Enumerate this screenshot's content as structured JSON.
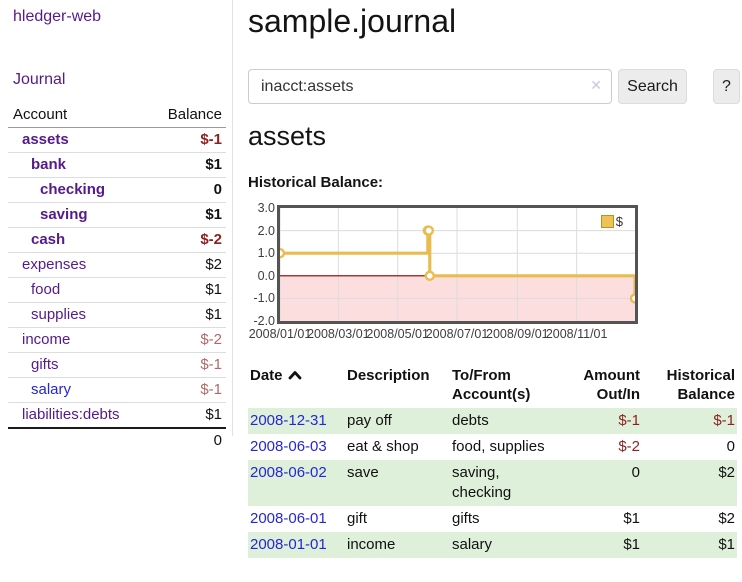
{
  "colors": {
    "accent_purple": "#551a8b",
    "link_blue": "#2626d4",
    "negative_strong": "#8e1f1f",
    "negative_soft": "#b26868",
    "row_highlight_green": "#def0da",
    "chart_gold": "#e9bc4f",
    "chart_negative_pink": "#fcdede",
    "chart_zero_line": "#8b0000"
  },
  "sidebar": {
    "brand": "hledger-web",
    "journal_label": "Journal",
    "accounts_table": {
      "headers": [
        "Account",
        "Balance"
      ],
      "rows": [
        {
          "name": "assets",
          "depth": 0,
          "balance": "$-1",
          "bold": true,
          "neg": "strong",
          "link": "purple"
        },
        {
          "name": "bank",
          "depth": 1,
          "balance": "$1",
          "bold": true,
          "neg": null,
          "link": "purple"
        },
        {
          "name": "checking",
          "depth": 2,
          "balance": "0",
          "bold": true,
          "neg": null,
          "link": "purple"
        },
        {
          "name": "saving",
          "depth": 2,
          "balance": "$1",
          "bold": true,
          "neg": null,
          "link": "purple"
        },
        {
          "name": "cash",
          "depth": 1,
          "balance": "$-2",
          "bold": true,
          "neg": "strong",
          "link": "purple"
        },
        {
          "name": "expenses",
          "depth": 0,
          "balance": "$2",
          "bold": false,
          "neg": null,
          "link": "purple"
        },
        {
          "name": "food",
          "depth": 1,
          "balance": "$1",
          "bold": false,
          "neg": null,
          "link": "purple"
        },
        {
          "name": "supplies",
          "depth": 1,
          "balance": "$1",
          "bold": false,
          "neg": null,
          "link": "purple"
        },
        {
          "name": "income",
          "depth": 0,
          "balance": "$-2",
          "bold": false,
          "neg": "soft",
          "link": "purple"
        },
        {
          "name": "gifts",
          "depth": 1,
          "balance": "$-1",
          "bold": false,
          "neg": "soft",
          "link": "purple"
        },
        {
          "name": "salary",
          "depth": 1,
          "balance": "$-1",
          "bold": false,
          "neg": "soft",
          "link": "blue"
        },
        {
          "name": "liabilities:debts",
          "depth": 0,
          "balance": "$1",
          "bold": false,
          "neg": null,
          "link": "purple"
        }
      ],
      "total": "0"
    }
  },
  "header": {
    "title": "sample.journal"
  },
  "search": {
    "value": "inacct:assets",
    "clear_icon": "✕",
    "button_label": "Search",
    "help_label": "?"
  },
  "account_page": {
    "title": "assets",
    "chart_label": "Historical Balance:"
  },
  "chart_data": {
    "type": "line",
    "step": true,
    "title": "Historical Balance",
    "legend_position": "top-right",
    "series": [
      {
        "name": "$",
        "color": "#e9bc4f",
        "points": [
          [
            "2008-01-01",
            1
          ],
          [
            "2008-06-01",
            2
          ],
          [
            "2008-06-02",
            2
          ],
          [
            "2008-06-03",
            0
          ],
          [
            "2008-12-31",
            -1
          ]
        ]
      }
    ],
    "xlim": [
      "2008-01-01",
      "2008-12-31"
    ],
    "ylim": [
      -2,
      3
    ],
    "y_ticks": [
      3,
      2,
      1,
      0,
      -1,
      -2
    ],
    "x_ticks": [
      {
        "date": "2008-01-01",
        "label": "2008/01/01"
      },
      {
        "date": "2008-03-01",
        "label": "2008/03/01"
      },
      {
        "date": "2008-05-01",
        "label": "2008/05/01"
      },
      {
        "date": "2008-07-01",
        "label": "2008/07/01"
      },
      {
        "date": "2008-09-01",
        "label": "2008/09/01"
      },
      {
        "date": "2008-11-01",
        "label": "2008/11/01"
      }
    ],
    "grid": true,
    "negative_band": {
      "from": 0,
      "to": -2,
      "color": "#fcdede",
      "line_color": "#8b0000"
    }
  },
  "register": {
    "columns": [
      {
        "label": "Date",
        "sorted": "asc"
      },
      {
        "label": "Description"
      },
      {
        "label": "To/From Account(s)"
      },
      {
        "label": "Amount Out/In",
        "align": "right"
      },
      {
        "label": "Historical Balance",
        "align": "right"
      }
    ],
    "rows": [
      {
        "date": "2008-12-31",
        "description": "pay off",
        "accounts": "debts",
        "amount": "$-1",
        "amount_neg": true,
        "balance": "$-1",
        "balance_neg": true
      },
      {
        "date": "2008-06-03",
        "description": "eat & shop",
        "accounts": "food, supplies",
        "amount": "$-2",
        "amount_neg": true,
        "balance": "0",
        "balance_neg": false
      },
      {
        "date": "2008-06-02",
        "description": "save",
        "accounts": "saving, checking",
        "amount": "0",
        "amount_neg": false,
        "balance": "$2",
        "balance_neg": false
      },
      {
        "date": "2008-06-01",
        "description": "gift",
        "accounts": "gifts",
        "amount": "$1",
        "amount_neg": false,
        "balance": "$2",
        "balance_neg": false
      },
      {
        "date": "2008-01-01",
        "description": "income",
        "accounts": "salary",
        "amount": "$1",
        "amount_neg": false,
        "balance": "$1",
        "balance_neg": false
      }
    ]
  }
}
